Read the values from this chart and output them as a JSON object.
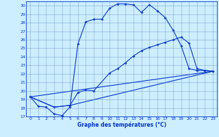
{
  "xlabel": "Graphe des températures (°C)",
  "bg_color": "#cceeff",
  "grid_color": "#5577bb",
  "line_color": "#0033cc",
  "ylim": [
    17,
    30.5
  ],
  "xlim": [
    -0.5,
    23.5
  ],
  "yticks": [
    17,
    18,
    19,
    20,
    21,
    22,
    23,
    24,
    25,
    26,
    27,
    28,
    29,
    30
  ],
  "xticks": [
    0,
    1,
    2,
    3,
    4,
    5,
    6,
    7,
    8,
    9,
    10,
    11,
    12,
    13,
    14,
    15,
    16,
    17,
    18,
    19,
    20,
    21,
    22,
    23
  ],
  "line1_x": [
    0,
    1,
    2,
    3,
    4,
    5,
    6,
    7,
    8,
    9,
    10,
    11,
    12,
    13,
    14,
    15,
    16,
    17,
    18,
    19,
    20,
    21,
    22,
    23
  ],
  "line1_y": [
    19.3,
    18.2,
    18.1,
    17.3,
    17.1,
    18.1,
    25.5,
    28.1,
    28.4,
    28.4,
    29.7,
    30.2,
    30.2,
    30.1,
    29.2,
    30.1,
    29.4,
    28.6,
    27.1,
    25.3,
    22.6,
    22.4,
    22.4,
    22.3
  ],
  "line2_x": [
    0,
    3,
    5,
    6,
    7,
    8,
    10,
    11,
    12,
    13,
    14,
    15,
    16,
    17,
    18,
    19,
    20,
    21,
    22,
    23
  ],
  "line2_y": [
    19.3,
    18.1,
    18.3,
    19.8,
    20.1,
    20.0,
    22.1,
    22.6,
    23.3,
    24.1,
    24.7,
    25.1,
    25.4,
    25.7,
    26.0,
    26.3,
    25.6,
    22.6,
    22.4,
    22.3
  ],
  "line3_x": [
    0,
    3,
    5,
    23
  ],
  "line3_y": [
    19.3,
    18.1,
    18.3,
    22.3
  ],
  "line4_x": [
    0,
    23
  ],
  "line4_y": [
    19.3,
    22.3
  ]
}
